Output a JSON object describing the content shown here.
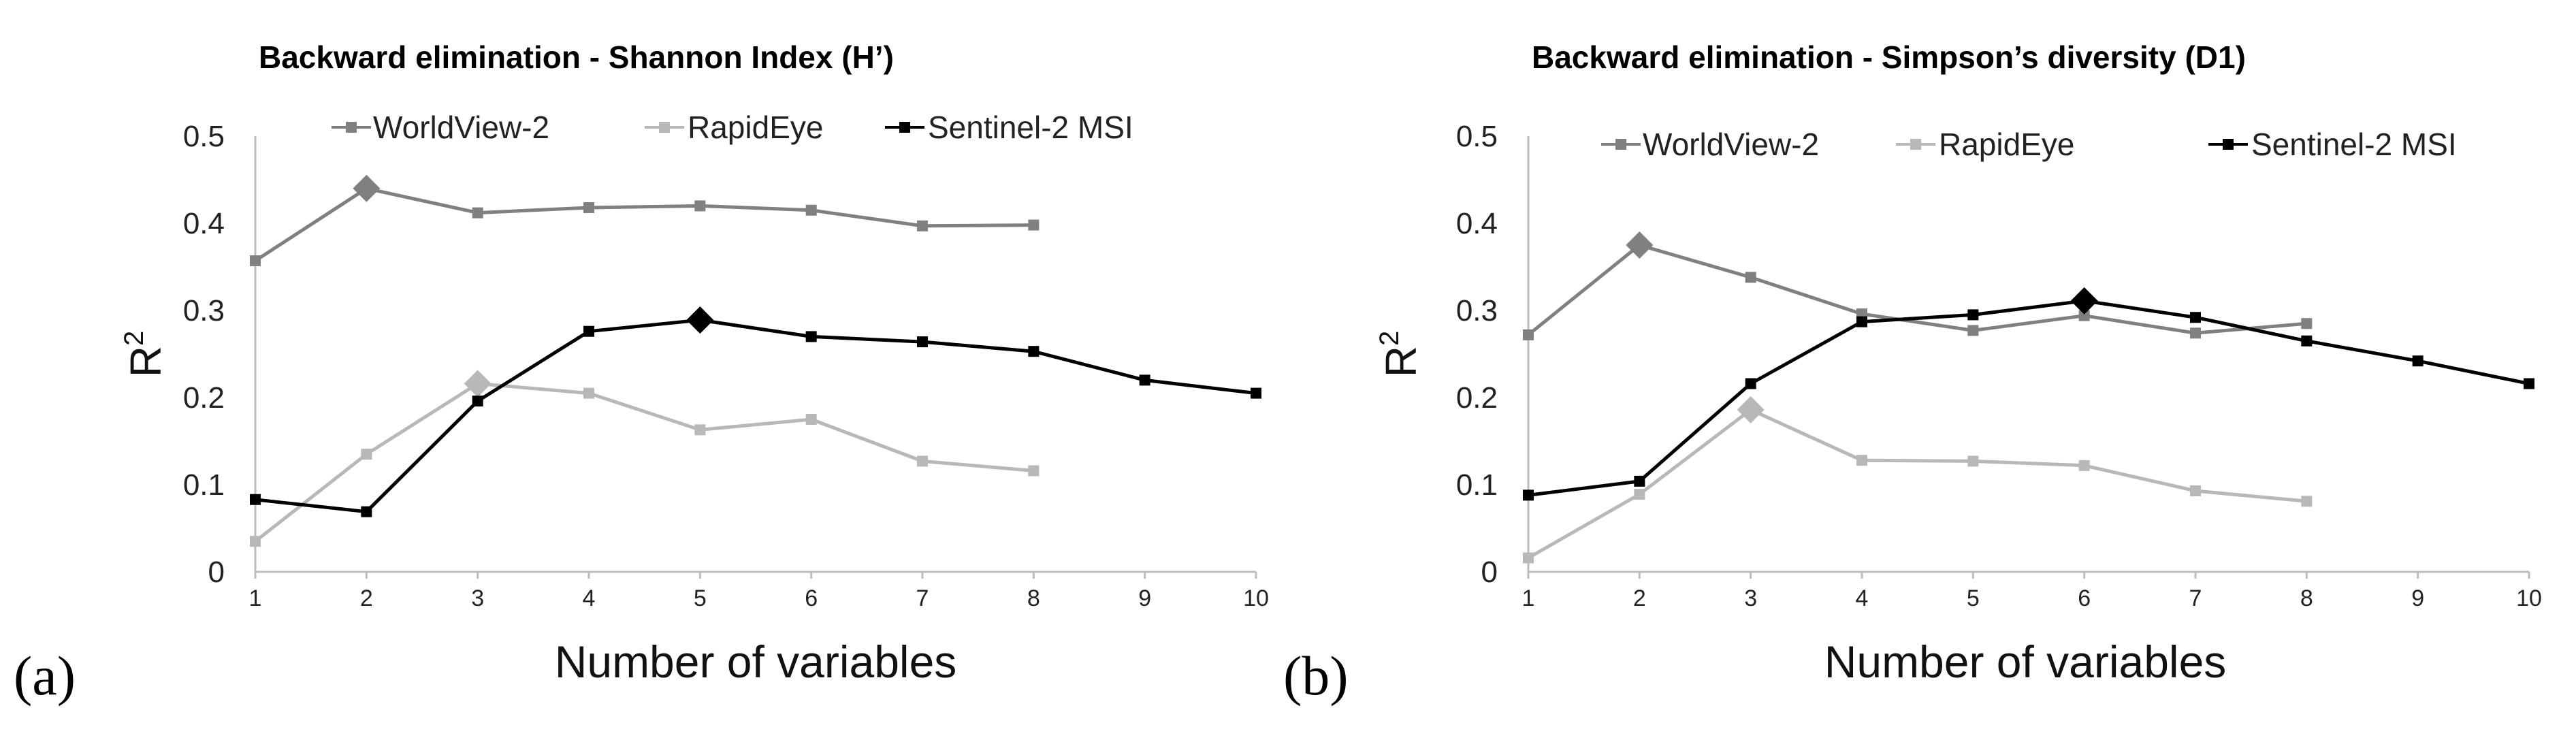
{
  "chart_data": [
    {
      "type": "line",
      "panel": "(a)",
      "title": "Backward elimination - Shannon Index (H’)",
      "xlabel": "Number of variables",
      "ylabel": "R",
      "ylabel_sup": "2",
      "ylim": [
        0,
        0.5
      ],
      "yticks": [
        "0",
        "0.1",
        "0.2",
        "0.3",
        "0.4",
        "0.5"
      ],
      "x": [
        1,
        2,
        3,
        4,
        5,
        6,
        7,
        8,
        9,
        10
      ],
      "legend_position": "top",
      "series": [
        {
          "name": "WorldView-2",
          "color": "#808080",
          "x": [
            1,
            2,
            3,
            4,
            5,
            6,
            7,
            8
          ],
          "values": [
            0.357,
            0.44,
            0.412,
            0.418,
            0.42,
            0.415,
            0.397,
            0.398
          ],
          "highlight_x": 2
        },
        {
          "name": "RapidEye",
          "color": "#b8b8b8",
          "x": [
            1,
            2,
            3,
            4,
            5,
            6,
            7,
            8
          ],
          "values": [
            0.035,
            0.135,
            0.216,
            0.205,
            0.163,
            0.175,
            0.127,
            0.116
          ],
          "highlight_x": 3
        },
        {
          "name": "Sentinel-2 MSI",
          "color": "#000000",
          "x": [
            1,
            2,
            3,
            4,
            5,
            6,
            7,
            8,
            9,
            10
          ],
          "values": [
            0.083,
            0.069,
            0.196,
            0.276,
            0.289,
            0.27,
            0.264,
            0.253,
            0.22,
            0.205
          ],
          "highlight_x": 5
        }
      ]
    },
    {
      "type": "line",
      "panel": "(b)",
      "title": "Backward elimination - Simpson’s diversity  (D1)",
      "xlabel": "Number of variables",
      "ylabel": "R",
      "ylabel_sup": "2",
      "ylim": [
        0,
        0.5
      ],
      "yticks": [
        "0",
        "0.1",
        "0.2",
        "0.3",
        "0.4",
        "0.5"
      ],
      "x": [
        1,
        2,
        3,
        4,
        5,
        6,
        7,
        8,
        9,
        10
      ],
      "legend_position": "top",
      "series": [
        {
          "name": "WorldView-2",
          "color": "#808080",
          "x": [
            1,
            2,
            3,
            4,
            5,
            6,
            7,
            8
          ],
          "values": [
            0.272,
            0.375,
            0.338,
            0.296,
            0.277,
            0.294,
            0.274,
            0.285
          ],
          "highlight_x": 2
        },
        {
          "name": "RapidEye",
          "color": "#b8b8b8",
          "x": [
            1,
            2,
            3,
            4,
            5,
            6,
            7,
            8
          ],
          "values": [
            0.016,
            0.089,
            0.186,
            0.128,
            0.127,
            0.122,
            0.093,
            0.081
          ],
          "highlight_x": 3
        },
        {
          "name": "Sentinel-2 MSI",
          "color": "#000000",
          "x": [
            1,
            2,
            3,
            4,
            5,
            6,
            7,
            8,
            9,
            10
          ],
          "values": [
            0.088,
            0.104,
            0.216,
            0.287,
            0.295,
            0.311,
            0.292,
            0.265,
            0.242,
            0.216
          ],
          "highlight_x": 6
        }
      ]
    }
  ]
}
